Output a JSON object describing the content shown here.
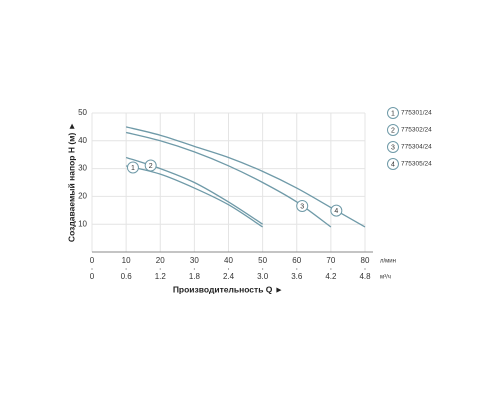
{
  "chart_data": {
    "type": "line",
    "x_label": "Производительность Q ►",
    "y_label": "Создаваемый напор H (м) ►",
    "x_unit": "л/мин",
    "x2_unit": "м³/ч",
    "xlim": [
      0,
      80
    ],
    "xticks": [
      0,
      10,
      20,
      30,
      40,
      50,
      60,
      70,
      80
    ],
    "x2lim": [
      0,
      4.8
    ],
    "x2ticks": [
      0,
      0.6,
      1.2,
      1.8,
      2.4,
      {
        "value": 3,
        "label": "3.0"
      },
      3.6,
      4.2,
      4.8
    ],
    "ylim": [
      0,
      50
    ],
    "yticks": [
      10,
      20,
      30,
      40,
      50
    ],
    "grid": true,
    "series": [
      {
        "name": "775301/24",
        "marker_label": "1",
        "color": "#6f9aa8",
        "x": [
          10,
          20,
          30,
          40,
          50
        ],
        "values": [
          31,
          28,
          23,
          17,
          9
        ]
      },
      {
        "name": "775302/24",
        "marker_label": "2",
        "color": "#6f9aa8",
        "x": [
          10,
          20,
          30,
          40,
          50
        ],
        "values": [
          34,
          30,
          25,
          18,
          10
        ]
      },
      {
        "name": "775304/24",
        "marker_label": "3",
        "color": "#6f9aa8",
        "x": [
          10,
          20,
          30,
          40,
          50,
          60,
          70
        ],
        "values": [
          43,
          40,
          36,
          31,
          25,
          18,
          9
        ]
      },
      {
        "name": "775305/24",
        "marker_label": "4",
        "color": "#6f9aa8",
        "x": [
          10,
          20,
          30,
          40,
          50,
          60,
          70,
          80
        ],
        "values": [
          45,
          42,
          38,
          34,
          29,
          23,
          16,
          9
        ]
      }
    ]
  }
}
